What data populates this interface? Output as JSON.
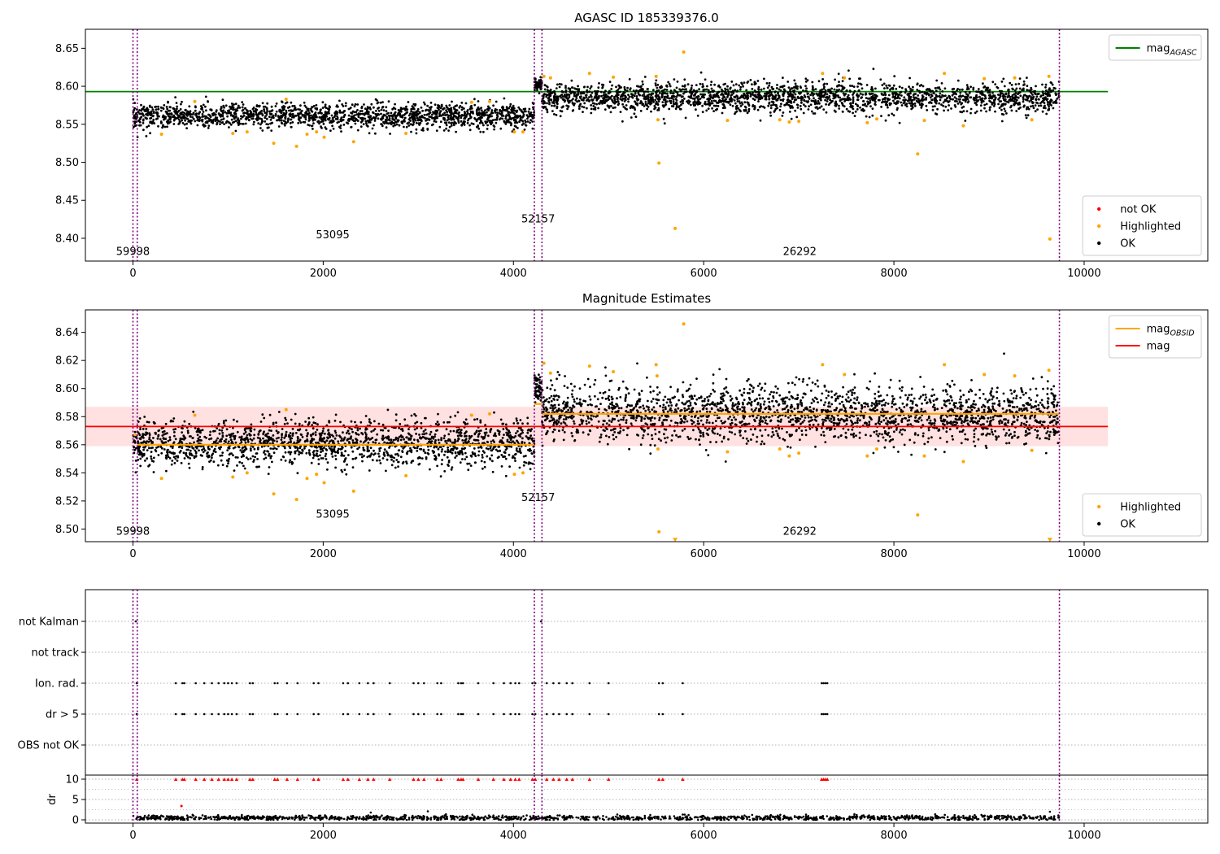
{
  "colors": {
    "ok": "#000000",
    "highlighted": "#ffa500",
    "not_ok": "#ff0000",
    "agasc_line": "#008000",
    "mag_line": "#ff0000",
    "obsid_line": "#ffa500",
    "mag_band": "#ffdcdc",
    "obsid_boundary": "#800080",
    "grid": "#b0b0b0"
  },
  "chart_data": [
    {
      "id": "top",
      "type": "scatter",
      "title": "AGASC ID 185339376.0",
      "xlabel": "",
      "ylabel": "",
      "xlim": [
        -500,
        11300
      ],
      "ylim": [
        8.37,
        8.675
      ],
      "xticks": [
        0,
        2000,
        4000,
        6000,
        8000,
        10000
      ],
      "yticks": [
        8.4,
        8.45,
        8.5,
        8.55,
        8.6,
        8.65
      ],
      "ytick_labels": [
        "8.40",
        "8.45",
        "8.50",
        "8.55",
        "8.60",
        "8.65"
      ],
      "grid": false,
      "legends": [
        {
          "placement": "top-right",
          "entries": [
            {
              "label": "mag",
              "sub": "AGASC",
              "marker": "line",
              "color": "#008000"
            }
          ]
        },
        {
          "placement": "bottom-right",
          "entries": [
            {
              "label": "not OK",
              "marker": "dot",
              "color": "#ff0000"
            },
            {
              "label": "Highlighted",
              "marker": "dot",
              "color": "#ffa500"
            },
            {
              "label": "OK",
              "marker": "dot",
              "color": "#000000"
            }
          ]
        }
      ],
      "hlines": [
        {
          "y": 8.593,
          "x": [
            -500,
            10250
          ],
          "color": "#008000"
        }
      ],
      "obsid_boundaries": [
        0,
        45,
        4220,
        4300,
        9740
      ],
      "obsid_labels": [
        {
          "text": "59998",
          "x": 0,
          "y": 8.378
        },
        {
          "text": "53095",
          "x": 2100,
          "y": 8.4
        },
        {
          "text": "52157",
          "x": 4260,
          "y": 8.421
        },
        {
          "text": "26292",
          "x": 7010,
          "y": 8.378
        }
      ],
      "segments": [
        {
          "x": [
            0,
            4220
          ],
          "center": 8.561,
          "spread": 0.008,
          "color": "#000000",
          "count": 1700
        },
        {
          "x": [
            4220,
            4300
          ],
          "center": 8.601,
          "spread": 0.005,
          "color": "#000000",
          "count": 60
        },
        {
          "x": [
            4300,
            9740
          ],
          "center": 8.585,
          "spread": 0.01,
          "color": "#000000",
          "count": 2200
        }
      ],
      "highlighted_points": [
        [
          300,
          8.537
        ],
        [
          650,
          8.58
        ],
        [
          1050,
          8.538
        ],
        [
          1200,
          8.54
        ],
        [
          1480,
          8.525
        ],
        [
          1610,
          8.583
        ],
        [
          1720,
          8.521
        ],
        [
          1830,
          8.537
        ],
        [
          1930,
          8.54
        ],
        [
          2010,
          8.533
        ],
        [
          2320,
          8.527
        ],
        [
          2870,
          8.538
        ],
        [
          3560,
          8.579
        ],
        [
          3750,
          8.58
        ],
        [
          4010,
          8.54
        ],
        [
          4100,
          8.54
        ],
        [
          4320,
          8.613
        ],
        [
          4390,
          8.611
        ],
        [
          4800,
          8.617
        ],
        [
          5050,
          8.612
        ],
        [
          5500,
          8.613
        ],
        [
          5520,
          8.556
        ],
        [
          5530,
          8.499
        ],
        [
          5700,
          8.413
        ],
        [
          5790,
          8.645
        ],
        [
          6250,
          8.555
        ],
        [
          6800,
          8.556
        ],
        [
          6900,
          8.553
        ],
        [
          7000,
          8.554
        ],
        [
          7250,
          8.617
        ],
        [
          7480,
          8.611
        ],
        [
          7720,
          8.552
        ],
        [
          7820,
          8.557
        ],
        [
          8250,
          8.511
        ],
        [
          8320,
          8.555
        ],
        [
          8530,
          8.617
        ],
        [
          8730,
          8.548
        ],
        [
          8950,
          8.61
        ],
        [
          9270,
          8.611
        ],
        [
          9450,
          8.556
        ],
        [
          9630,
          8.613
        ],
        [
          9640,
          8.399
        ]
      ],
      "not_ok_points": []
    },
    {
      "id": "middle",
      "type": "scatter",
      "title": "Magnitude Estimates",
      "xlabel": "",
      "ylabel": "",
      "xlim": [
        -500,
        11300
      ],
      "ylim": [
        8.491,
        8.656
      ],
      "xticks": [
        0,
        2000,
        4000,
        6000,
        8000,
        10000
      ],
      "yticks": [
        8.5,
        8.52,
        8.54,
        8.56,
        8.58,
        8.6,
        8.62,
        8.64
      ],
      "ytick_labels": [
        "8.50",
        "8.52",
        "8.54",
        "8.56",
        "8.58",
        "8.60",
        "8.62",
        "8.64"
      ],
      "grid": false,
      "legends": [
        {
          "placement": "top-right",
          "entries": [
            {
              "label": "mag",
              "sub": "OBSID",
              "marker": "line",
              "color": "#ffa500"
            },
            {
              "label": "mag",
              "marker": "line",
              "color": "#ff0000"
            }
          ]
        },
        {
          "placement": "bottom-right",
          "entries": [
            {
              "label": "Highlighted",
              "marker": "dot",
              "color": "#ffa500"
            },
            {
              "label": "OK",
              "marker": "dot",
              "color": "#000000"
            }
          ]
        }
      ],
      "band": {
        "y": [
          8.559,
          8.587
        ],
        "x": [
          -500,
          10250
        ],
        "color": "#ffdcdc"
      },
      "hlines": [
        {
          "y": 8.573,
          "x": [
            -500,
            10250
          ],
          "color": "#ff0000"
        }
      ],
      "step_lines": [
        {
          "x": [
            0,
            45
          ],
          "y": 8.567
        },
        {
          "x": [
            45,
            4220
          ],
          "y": 8.56
        },
        {
          "x": [
            4220,
            4300
          ],
          "y": 8.589
        },
        {
          "x": [
            4300,
            9740
          ],
          "y": 8.582
        }
      ],
      "obsid_boundaries": [
        0,
        45,
        4220,
        4300,
        9740
      ],
      "obsid_labels": [
        {
          "text": "59998",
          "x": 0,
          "y": 8.496
        },
        {
          "text": "53095",
          "x": 2100,
          "y": 8.508
        },
        {
          "text": "52157",
          "x": 4260,
          "y": 8.52
        },
        {
          "text": "26292",
          "x": 7010,
          "y": 8.496
        }
      ],
      "segments": [
        {
          "x": [
            0,
            4220
          ],
          "center": 8.561,
          "spread": 0.008,
          "color": "#000000",
          "count": 1700
        },
        {
          "x": [
            4220,
            4300
          ],
          "center": 8.6,
          "spread": 0.005,
          "color": "#000000",
          "count": 60
        },
        {
          "x": [
            4300,
            9740
          ],
          "center": 8.582,
          "spread": 0.01,
          "color": "#000000",
          "count": 2200
        }
      ],
      "highlighted_points": [
        [
          300,
          8.536
        ],
        [
          650,
          8.581
        ],
        [
          1050,
          8.537
        ],
        [
          1200,
          8.54
        ],
        [
          1480,
          8.525
        ],
        [
          1610,
          8.585
        ],
        [
          1720,
          8.521
        ],
        [
          1830,
          8.536
        ],
        [
          1930,
          8.539
        ],
        [
          2010,
          8.533
        ],
        [
          2320,
          8.527
        ],
        [
          2870,
          8.538
        ],
        [
          3560,
          8.581
        ],
        [
          3750,
          8.582
        ],
        [
          4010,
          8.539
        ],
        [
          4100,
          8.54
        ],
        [
          4320,
          8.618
        ],
        [
          4390,
          8.611
        ],
        [
          4800,
          8.616
        ],
        [
          5050,
          8.612
        ],
        [
          5500,
          8.617
        ],
        [
          5510,
          8.609
        ],
        [
          5520,
          8.557
        ],
        [
          5530,
          8.498
        ],
        [
          5790,
          8.646
        ],
        [
          6250,
          8.555
        ],
        [
          6800,
          8.557
        ],
        [
          6900,
          8.552
        ],
        [
          7000,
          8.554
        ],
        [
          7250,
          8.617
        ],
        [
          7480,
          8.61
        ],
        [
          7720,
          8.552
        ],
        [
          7820,
          8.557
        ],
        [
          8250,
          8.51
        ],
        [
          8320,
          8.552
        ],
        [
          8530,
          8.617
        ],
        [
          8730,
          8.548
        ],
        [
          8950,
          8.61
        ],
        [
          9270,
          8.609
        ],
        [
          9450,
          8.556
        ],
        [
          9630,
          8.613
        ]
      ],
      "clipped_points": [
        [
          5700,
          8.492
        ],
        [
          9640,
          8.492
        ]
      ]
    },
    {
      "id": "flags",
      "type": "scatter",
      "title": "",
      "xlabel": "",
      "ylabel": "",
      "xlim": [
        -500,
        11300
      ],
      "categories": [
        "not Kalman",
        "not track",
        "Ion. rad.",
        "dr > 5",
        "OBS not OK"
      ],
      "grid": true,
      "obsid_boundaries": [
        0,
        45,
        4220,
        4300,
        9740
      ],
      "flag_points": {
        "not Kalman": [
          30,
          4290
        ],
        "not track": [],
        "Ion. rad.": [
          40,
          450,
          520,
          540,
          660,
          750,
          830,
          900,
          960,
          1000,
          1040,
          1090,
          1230,
          1260,
          1490,
          1520,
          1620,
          1730,
          1900,
          1950,
          2210,
          2260,
          2380,
          2470,
          2530,
          2700,
          2950,
          3000,
          3060,
          3200,
          3240,
          3420,
          3450,
          3470,
          3630,
          3790,
          3900,
          3970,
          4020,
          4060,
          4200,
          4230,
          4350,
          4420,
          4480,
          4560,
          4620,
          4800,
          5000,
          5530,
          5570,
          5780,
          7240,
          7260,
          7280,
          7300
        ],
        "dr > 5": [
          40,
          450,
          520,
          540,
          660,
          750,
          830,
          900,
          960,
          1000,
          1040,
          1090,
          1230,
          1260,
          1490,
          1520,
          1620,
          1730,
          1900,
          1950,
          2210,
          2260,
          2380,
          2470,
          2530,
          2700,
          2950,
          3000,
          3060,
          3200,
          3240,
          3420,
          3450,
          3470,
          3630,
          3790,
          3900,
          3970,
          4020,
          4060,
          4200,
          4230,
          4350,
          4420,
          4480,
          4560,
          4620,
          4800,
          5000,
          5530,
          5570,
          5780,
          7240,
          7260,
          7280,
          7300
        ],
        "OBS not OK": []
      }
    },
    {
      "id": "dr",
      "type": "scatter",
      "title": "",
      "xlabel": "",
      "ylabel": "dr",
      "xlim": [
        -500,
        11300
      ],
      "ylim": [
        -0.8,
        11
      ],
      "xticks": [
        0,
        2000,
        4000,
        6000,
        8000,
        10000
      ],
      "yticks": [
        0,
        5,
        10
      ],
      "ytick_labels": [
        "0",
        "5",
        "10"
      ],
      "grid": true,
      "obsid_boundaries": [
        0,
        45,
        4220,
        4300,
        9740
      ],
      "baseline": {
        "x": [
          0,
          9740
        ],
        "center": 0.5,
        "spread": 0.3,
        "color": "#000000",
        "count": 1400
      },
      "clipped_value": 10,
      "clipped_points_x": [
        40,
        450,
        520,
        540,
        660,
        750,
        830,
        900,
        960,
        1000,
        1040,
        1090,
        1230,
        1260,
        1490,
        1520,
        1620,
        1730,
        1900,
        1950,
        2210,
        2260,
        2380,
        2470,
        2530,
        2700,
        2950,
        3000,
        3060,
        3200,
        3240,
        3420,
        3450,
        3470,
        3630,
        3790,
        3900,
        3970,
        4020,
        4060,
        4200,
        4230,
        4350,
        4420,
        4480,
        4560,
        4620,
        4800,
        5000,
        5530,
        5570,
        5780,
        7240,
        7260,
        7280,
        7300
      ],
      "outliers": [
        [
          510,
          3.4
        ],
        [
          2500,
          1.8
        ],
        [
          3100,
          2.1
        ],
        [
          5800,
          1.3
        ],
        [
          9640,
          2.0
        ]
      ]
    }
  ]
}
